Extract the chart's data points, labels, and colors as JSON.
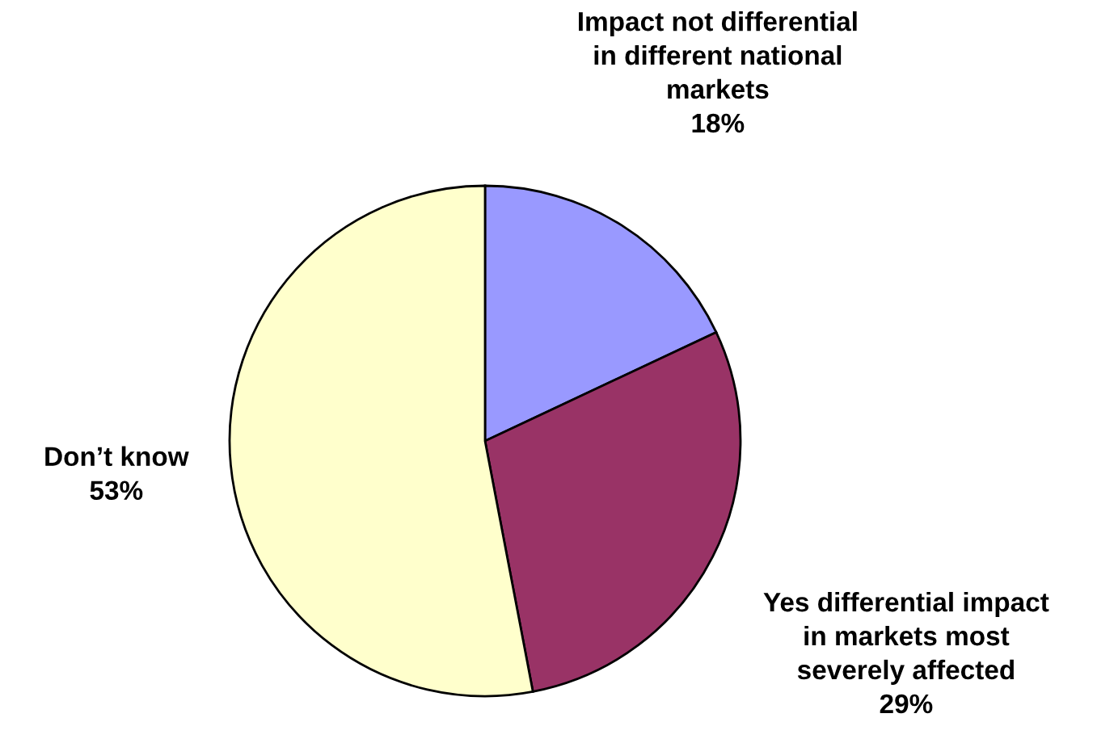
{
  "chart_data": {
    "type": "pie",
    "categories": [
      "Impact not differential\nin different national\nmarkets",
      "Yes differential impact\nin markets most\nseverely affected",
      "Don’t know"
    ],
    "values": [
      18,
      29,
      53
    ],
    "value_labels": [
      "18%",
      "29%",
      "53%"
    ],
    "colors": [
      "#9999ff",
      "#993366",
      "#ffffcc"
    ],
    "legend": false
  }
}
